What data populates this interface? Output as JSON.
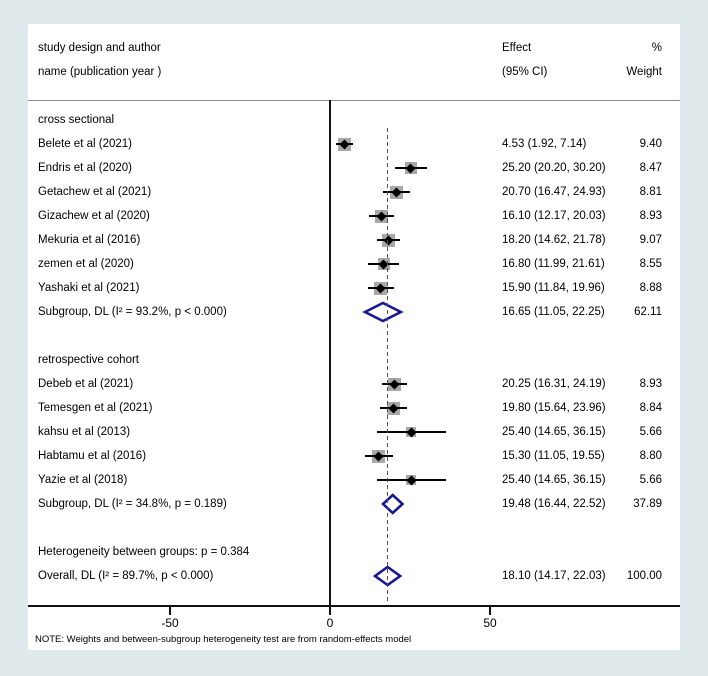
{
  "header": {
    "col_study_line1": "study design and author",
    "col_study_line2": "name (publication year )",
    "col_effect_line1": "Effect",
    "col_effect_line2": "(95% CI)",
    "col_weight_line1": "%",
    "col_weight_line2": "Weight"
  },
  "note": "NOTE: Weights and between-subgroup heterogeneity test are from random-effects model",
  "colors": {
    "background": "#e0eaec",
    "panel": "#ffffff",
    "axis": "#111111",
    "ref_line": "#90353B",
    "summary_diamond": "#18188f",
    "weight_box": "#a8a8a8",
    "ci_line": "#000000"
  },
  "chart_data": {
    "type": "forest",
    "x_ticks": [
      -50,
      0,
      50
    ],
    "xlim": [
      -94,
      109
    ],
    "ref_line_value": 18.1,
    "grid": false,
    "rows": [
      {
        "kind": "group",
        "label": "cross sectional"
      },
      {
        "kind": "study",
        "label": "Belete et al (2021)",
        "est": 4.53,
        "lo": 1.92,
        "hi": 7.14,
        "effect_label": "4.53 (1.92, 7.14)",
        "weight": 9.4,
        "weight_label": "9.40"
      },
      {
        "kind": "study",
        "label": "Endris et al (2020)",
        "est": 25.2,
        "lo": 20.2,
        "hi": 30.2,
        "effect_label": "25.20 (20.20, 30.20)",
        "weight": 8.47,
        "weight_label": "8.47"
      },
      {
        "kind": "study",
        "label": "Getachew et al (2021)",
        "est": 20.7,
        "lo": 16.47,
        "hi": 24.93,
        "effect_label": "20.70 (16.47, 24.93)",
        "weight": 8.81,
        "weight_label": "8.81"
      },
      {
        "kind": "study",
        "label": "Gizachew et al (2020)",
        "est": 16.1,
        "lo": 12.17,
        "hi": 20.03,
        "effect_label": "16.10 (12.17, 20.03)",
        "weight": 8.93,
        "weight_label": "8.93"
      },
      {
        "kind": "study",
        "label": "Mekuria et al (2016)",
        "est": 18.2,
        "lo": 14.62,
        "hi": 21.78,
        "effect_label": "18.20 (14.62, 21.78)",
        "weight": 9.07,
        "weight_label": "9.07"
      },
      {
        "kind": "study",
        "label": "zemen et al (2020)",
        "est": 16.8,
        "lo": 11.99,
        "hi": 21.61,
        "effect_label": "16.80 (11.99, 21.61)",
        "weight": 8.55,
        "weight_label": "8.55"
      },
      {
        "kind": "study",
        "label": "Yashaki et al (2021)",
        "est": 15.9,
        "lo": 11.84,
        "hi": 19.96,
        "effect_label": "15.90 (11.84, 19.96)",
        "weight": 8.88,
        "weight_label": "8.88"
      },
      {
        "kind": "summary",
        "label": "Subgroup, DL (I² = 93.2%, p < 0.000)",
        "est": 16.65,
        "lo": 11.05,
        "hi": 22.25,
        "effect_label": "16.65 (11.05, 22.25)",
        "weight_label": "62.11"
      },
      {
        "kind": "gap"
      },
      {
        "kind": "group",
        "label": "retrospective cohort"
      },
      {
        "kind": "study",
        "label": "Debeb et al (2021)",
        "est": 20.25,
        "lo": 16.31,
        "hi": 24.19,
        "effect_label": "20.25 (16.31, 24.19)",
        "weight": 8.93,
        "weight_label": "8.93"
      },
      {
        "kind": "study",
        "label": "Temesgen et al (2021)",
        "est": 19.8,
        "lo": 15.64,
        "hi": 23.96,
        "effect_label": "19.80 (15.64, 23.96)",
        "weight": 8.84,
        "weight_label": "8.84"
      },
      {
        "kind": "study",
        "label": "kahsu et al (2013)",
        "est": 25.4,
        "lo": 14.65,
        "hi": 36.15,
        "effect_label": "25.40 (14.65, 36.15)",
        "weight": 5.66,
        "weight_label": "5.66"
      },
      {
        "kind": "study",
        "label": "Habtamu et al (2016)",
        "est": 15.3,
        "lo": 11.05,
        "hi": 19.55,
        "effect_label": "15.30 (11.05, 19.55)",
        "weight": 8.8,
        "weight_label": "8.80"
      },
      {
        "kind": "study",
        "label": "Yazie et al (2018)",
        "est": 25.4,
        "lo": 14.65,
        "hi": 36.15,
        "effect_label": "25.40 (14.65, 36.15)",
        "weight": 5.66,
        "weight_label": "5.66"
      },
      {
        "kind": "summary",
        "label": "Subgroup, DL (I² = 34.8%, p = 0.189)",
        "est": 19.48,
        "lo": 16.44,
        "hi": 22.52,
        "effect_label": "19.48 (16.44, 22.52)",
        "weight_label": "37.89"
      },
      {
        "kind": "gap"
      },
      {
        "kind": "text",
        "label": "Heterogeneity between groups: p = 0.384"
      },
      {
        "kind": "summary",
        "label": "Overall, DL (I² = 89.7%, p < 0.000)",
        "est": 18.1,
        "lo": 14.17,
        "hi": 22.03,
        "effect_label": "18.10 (14.17, 22.03)",
        "weight_label": "100.00"
      }
    ]
  }
}
